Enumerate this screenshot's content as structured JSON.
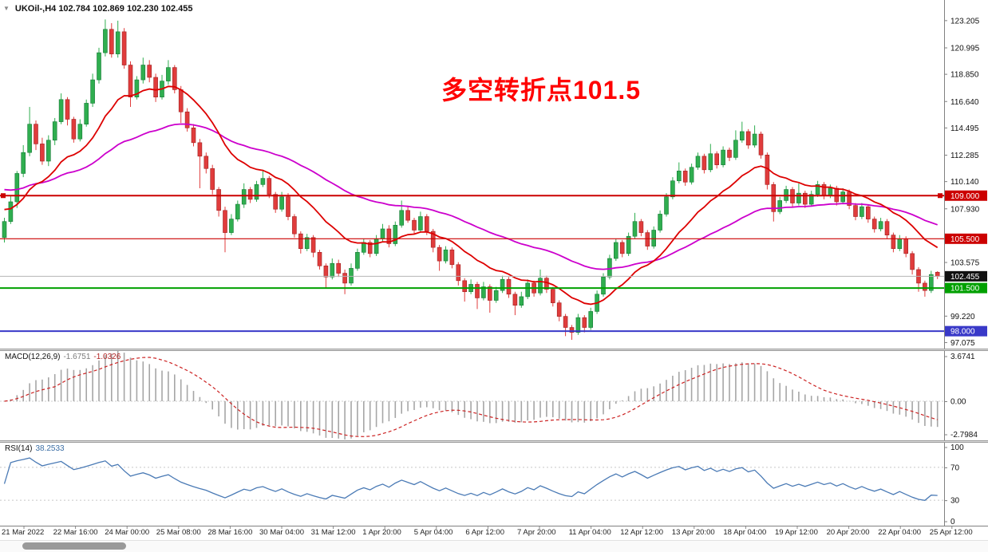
{
  "window": {
    "title": "UKOil-,H4 102.784 102.869 102.230 102.455"
  },
  "icons": {
    "shift_marker": "▼"
  },
  "annotation": {
    "text": "多空转折点101.5",
    "color": "#ff0000"
  },
  "indicators": {
    "macd": {
      "name": "MACD(12,26,9)",
      "value_text": "-1.6751",
      "signal_text": "-1.0326",
      "fast": 12,
      "slow": 26,
      "signal_period": 9,
      "axis_labels": [
        "3.6741",
        "0.00",
        "-2.7984"
      ],
      "axis_max": 3.6741,
      "axis_min": -2.7984,
      "histogram_color": "#a6a6a6",
      "signal_color": "#cc2222"
    },
    "rsi": {
      "name": "RSI(14)",
      "value_text": "38.2533",
      "period": 14,
      "axis_labels": [
        "100",
        "70",
        "30",
        "0"
      ],
      "levels": [
        70,
        30
      ],
      "line_color": "#4a7ab5",
      "level_color": "#c8c8c8"
    }
  },
  "price_axis": {
    "ticks": [
      "123.205",
      "120.995",
      "118.850",
      "116.640",
      "114.495",
      "112.285",
      "110.140",
      "107.930",
      "103.575",
      "99.220",
      "97.075"
    ],
    "range_max": 124.75,
    "range_min": 96.65,
    "tags": [
      {
        "text": "109.000",
        "value": 109.0,
        "bg": "#cc0000",
        "fg": "#ffffff"
      },
      {
        "text": "105.500",
        "value": 105.5,
        "bg": "#cc0000",
        "fg": "#ffffff"
      },
      {
        "text": "102.455",
        "value": 102.455,
        "bg": "#111111",
        "fg": "#ffffff"
      },
      {
        "text": "101.500",
        "value": 101.5,
        "bg": "#00a000",
        "fg": "#ffffff"
      },
      {
        "text": "98.000",
        "value": 98.0,
        "bg": "#3939c8",
        "fg": "#ffffff"
      }
    ]
  },
  "time_axis": {
    "labels": [
      "21 Mar 2022",
      "22 Mar 16:00",
      "24 Mar 00:00",
      "25 Mar 08:00",
      "28 Mar 16:00",
      "30 Mar 04:00",
      "31 Mar 12:00",
      "1 Apr 20:00",
      "5 Apr 04:00",
      "6 Apr 12:00",
      "7 Apr 20:00",
      "11 Apr 04:00",
      "12 Apr 12:00",
      "13 Apr 20:00",
      "18 Apr 04:00",
      "19 Apr 12:00",
      "20 Apr 20:00",
      "22 Apr 04:00",
      "25 Apr 12:00"
    ]
  },
  "chart_data": {
    "type": "candlestick",
    "symbol": "UKOil-",
    "timeframe": "H4",
    "title": "UKOil-,H4",
    "current_bar": {
      "open": 102.784,
      "high": 102.869,
      "low": 102.23,
      "close": 102.455
    },
    "bull_color": "#2fae4f",
    "bear_color": "#e03c3c",
    "ylim": [
      96.65,
      124.75
    ],
    "candles_ohlc": [
      [
        105.6,
        107.2,
        105.2,
        106.9
      ],
      [
        106.9,
        109.0,
        106.7,
        108.5
      ],
      [
        108.5,
        111.0,
        108.0,
        110.8
      ],
      [
        110.8,
        113.1,
        110.5,
        112.5
      ],
      [
        112.5,
        116.2,
        112.2,
        114.8
      ],
      [
        114.8,
        115.1,
        112.7,
        113.2
      ],
      [
        113.2,
        113.7,
        111.5,
        111.8
      ],
      [
        111.8,
        113.9,
        111.4,
        113.5
      ],
      [
        113.5,
        115.3,
        113.1,
        115.0
      ],
      [
        115.0,
        117.3,
        114.8,
        116.8
      ],
      [
        116.8,
        117.0,
        114.7,
        115.2
      ],
      [
        115.2,
        115.4,
        113.3,
        113.6
      ],
      [
        113.6,
        115.2,
        113.4,
        114.8
      ],
      [
        114.8,
        116.8,
        114.6,
        116.5
      ],
      [
        116.5,
        118.9,
        116.2,
        118.4
      ],
      [
        118.4,
        121.0,
        118.1,
        120.6
      ],
      [
        120.6,
        123.3,
        120.3,
        122.5
      ],
      [
        122.5,
        123.0,
        120.2,
        120.5
      ],
      [
        120.5,
        123.2,
        120.2,
        122.3
      ],
      [
        122.3,
        122.6,
        119.3,
        119.6
      ],
      [
        119.6,
        119.9,
        116.2,
        117.0
      ],
      [
        117.0,
        118.7,
        116.8,
        118.4
      ],
      [
        118.4,
        120.2,
        118.1,
        119.6
      ],
      [
        119.6,
        120.0,
        118.2,
        118.6
      ],
      [
        118.6,
        118.9,
        116.6,
        117.0
      ],
      [
        117.0,
        118.8,
        116.8,
        118.3
      ],
      [
        118.3,
        120.0,
        118.0,
        119.4
      ],
      [
        119.4,
        119.6,
        117.3,
        117.6
      ],
      [
        117.6,
        117.9,
        114.9,
        115.8
      ],
      [
        115.8,
        116.1,
        114.2,
        114.5
      ],
      [
        114.5,
        114.8,
        113.0,
        113.3
      ],
      [
        113.3,
        113.6,
        109.6,
        112.2
      ],
      [
        112.2,
        112.5,
        110.8,
        111.2
      ],
      [
        111.2,
        111.5,
        109.1,
        109.5
      ],
      [
        109.5,
        109.7,
        107.3,
        107.8
      ],
      [
        107.8,
        108.1,
        104.4,
        106.0
      ],
      [
        106.0,
        107.5,
        105.8,
        107.1
      ],
      [
        107.1,
        108.6,
        106.9,
        108.3
      ],
      [
        108.3,
        110.0,
        108.0,
        109.5
      ],
      [
        109.5,
        109.7,
        108.4,
        108.7
      ],
      [
        108.7,
        110.2,
        108.5,
        109.9
      ],
      [
        109.9,
        111.1,
        109.7,
        110.4
      ],
      [
        110.4,
        110.6,
        108.8,
        109.1
      ],
      [
        109.1,
        109.3,
        107.6,
        107.9
      ],
      [
        107.9,
        109.3,
        107.7,
        108.9
      ],
      [
        108.9,
        109.2,
        107.0,
        107.3
      ],
      [
        107.3,
        107.5,
        105.6,
        105.9
      ],
      [
        105.9,
        106.1,
        104.3,
        104.7
      ],
      [
        104.7,
        105.9,
        104.5,
        105.6
      ],
      [
        105.6,
        105.8,
        104.0,
        104.4
      ],
      [
        104.4,
        104.6,
        103.0,
        103.3
      ],
      [
        103.3,
        103.5,
        101.5,
        102.4
      ],
      [
        102.4,
        103.9,
        102.2,
        103.5
      ],
      [
        103.5,
        103.8,
        102.4,
        102.7
      ],
      [
        102.7,
        103.0,
        101.0,
        101.9
      ],
      [
        101.9,
        103.5,
        101.7,
        103.1
      ],
      [
        103.1,
        104.7,
        102.9,
        104.4
      ],
      [
        104.4,
        105.5,
        104.2,
        105.2
      ],
      [
        105.2,
        105.4,
        104.0,
        104.3
      ],
      [
        104.3,
        105.8,
        104.1,
        105.5
      ],
      [
        105.5,
        106.7,
        105.3,
        106.3
      ],
      [
        106.3,
        106.6,
        104.8,
        105.1
      ],
      [
        105.1,
        106.9,
        104.9,
        106.6
      ],
      [
        106.6,
        108.6,
        106.4,
        107.8
      ],
      [
        107.8,
        108.1,
        106.8,
        107.0
      ],
      [
        107.0,
        107.2,
        105.9,
        106.2
      ],
      [
        106.2,
        107.7,
        106.0,
        107.3
      ],
      [
        107.3,
        107.5,
        105.8,
        106.1
      ],
      [
        106.1,
        106.3,
        104.4,
        104.8
      ],
      [
        104.8,
        105.0,
        102.9,
        103.7
      ],
      [
        103.7,
        104.9,
        103.5,
        104.6
      ],
      [
        104.6,
        104.8,
        103.1,
        103.4
      ],
      [
        103.4,
        103.6,
        101.7,
        102.1
      ],
      [
        102.1,
        102.3,
        100.4,
        101.2
      ],
      [
        101.2,
        102.2,
        101.0,
        101.8
      ],
      [
        101.8,
        102.0,
        99.8,
        100.7
      ],
      [
        100.7,
        102.0,
        100.5,
        101.6
      ],
      [
        101.6,
        101.8,
        99.5,
        100.5
      ],
      [
        100.5,
        101.6,
        100.3,
        101.3
      ],
      [
        101.3,
        102.5,
        101.1,
        102.2
      ],
      [
        102.2,
        102.4,
        100.7,
        101.0
      ],
      [
        101.0,
        101.2,
        99.3,
        100.1
      ],
      [
        100.1,
        101.2,
        99.9,
        100.8
      ],
      [
        100.8,
        102.2,
        100.6,
        101.9
      ],
      [
        101.9,
        102.1,
        100.8,
        101.1
      ],
      [
        101.1,
        103.0,
        100.9,
        102.3
      ],
      [
        102.3,
        102.5,
        101.1,
        101.4
      ],
      [
        101.4,
        101.6,
        100.0,
        100.3
      ],
      [
        100.3,
        100.5,
        98.8,
        99.2
      ],
      [
        99.2,
        99.4,
        97.6,
        98.3
      ],
      [
        98.3,
        98.5,
        97.3,
        97.9
      ],
      [
        97.9,
        99.4,
        97.7,
        99.1
      ],
      [
        99.1,
        99.3,
        97.9,
        98.3
      ],
      [
        98.3,
        99.9,
        98.1,
        99.6
      ],
      [
        99.6,
        101.3,
        99.4,
        101.0
      ],
      [
        101.0,
        102.7,
        100.8,
        102.4
      ],
      [
        102.4,
        104.2,
        102.2,
        103.9
      ],
      [
        103.9,
        105.5,
        103.7,
        105.2
      ],
      [
        105.2,
        105.4,
        104.0,
        104.3
      ],
      [
        104.3,
        106.0,
        104.1,
        105.7
      ],
      [
        105.7,
        107.6,
        105.5,
        106.9
      ],
      [
        106.9,
        107.1,
        105.7,
        106.0
      ],
      [
        106.0,
        106.2,
        104.6,
        104.9
      ],
      [
        104.9,
        106.5,
        104.7,
        106.2
      ],
      [
        106.2,
        107.8,
        106.0,
        107.5
      ],
      [
        107.5,
        109.2,
        107.3,
        108.9
      ],
      [
        108.9,
        110.5,
        108.7,
        110.2
      ],
      [
        110.2,
        111.7,
        110.0,
        111.0
      ],
      [
        111.0,
        111.2,
        109.8,
        110.1
      ],
      [
        110.1,
        111.6,
        109.9,
        111.3
      ],
      [
        111.3,
        112.5,
        111.1,
        112.2
      ],
      [
        112.2,
        112.4,
        110.8,
        111.1
      ],
      [
        111.1,
        113.2,
        110.9,
        112.4
      ],
      [
        112.4,
        112.6,
        111.2,
        111.5
      ],
      [
        111.5,
        113.0,
        111.3,
        112.7
      ],
      [
        112.7,
        112.9,
        111.8,
        112.1
      ],
      [
        112.1,
        114.3,
        111.9,
        113.5
      ],
      [
        113.5,
        115.0,
        113.3,
        114.2
      ],
      [
        114.2,
        114.4,
        112.8,
        113.1
      ],
      [
        113.1,
        114.7,
        112.9,
        114.0
      ],
      [
        114.0,
        114.2,
        112.0,
        112.3
      ],
      [
        112.3,
        112.5,
        109.5,
        109.9
      ],
      [
        109.9,
        110.1,
        106.9,
        107.7
      ],
      [
        107.7,
        108.9,
        107.5,
        108.6
      ],
      [
        108.6,
        109.8,
        108.4,
        109.5
      ],
      [
        109.5,
        109.7,
        108.1,
        108.4
      ],
      [
        108.4,
        110.0,
        108.2,
        109.2
      ],
      [
        109.2,
        109.4,
        108.0,
        108.3
      ],
      [
        108.3,
        109.4,
        108.1,
        109.1
      ],
      [
        109.1,
        110.2,
        108.9,
        109.9
      ],
      [
        109.9,
        110.1,
        108.7,
        109.0
      ],
      [
        109.0,
        109.9,
        108.8,
        109.6
      ],
      [
        109.6,
        109.8,
        108.2,
        108.5
      ],
      [
        108.5,
        109.6,
        108.3,
        109.3
      ],
      [
        109.3,
        109.5,
        107.9,
        108.2
      ],
      [
        108.2,
        108.4,
        107.0,
        107.3
      ],
      [
        107.3,
        108.4,
        107.1,
        108.1
      ],
      [
        108.1,
        108.3,
        106.8,
        107.1
      ],
      [
        107.1,
        107.3,
        106.0,
        106.3
      ],
      [
        106.3,
        107.2,
        106.1,
        106.9
      ],
      [
        106.9,
        107.1,
        105.5,
        105.8
      ],
      [
        105.8,
        106.0,
        104.4,
        104.7
      ],
      [
        104.7,
        105.8,
        104.5,
        105.5
      ],
      [
        105.5,
        105.7,
        104.0,
        104.3
      ],
      [
        104.3,
        104.5,
        102.6,
        103.0
      ],
      [
        103.0,
        103.2,
        101.2,
        101.9
      ],
      [
        101.9,
        102.1,
        100.8,
        101.3
      ],
      [
        101.3,
        102.9,
        101.1,
        102.6
      ],
      [
        102.784,
        102.869,
        102.23,
        102.455
      ]
    ],
    "overlays": {
      "ema_fast": {
        "period": 16,
        "seed": 108.0,
        "color": "#dd0000"
      },
      "ema_slow": {
        "period": 48,
        "seed": 109.6,
        "color": "#cc00cc"
      },
      "hlines": [
        {
          "value": 109.0,
          "color": "#cc0000",
          "width": 2,
          "handles": true
        },
        {
          "value": 105.5,
          "color": "#cc0000",
          "width": 1.2,
          "handles": false
        },
        {
          "value": 101.5,
          "color": "#00a000",
          "width": 2,
          "handles": false
        },
        {
          "value": 98.0,
          "color": "#3939c8",
          "width": 2,
          "handles": false
        }
      ],
      "bid_line": {
        "value": 102.455,
        "color": "#b5b5b5"
      }
    }
  }
}
